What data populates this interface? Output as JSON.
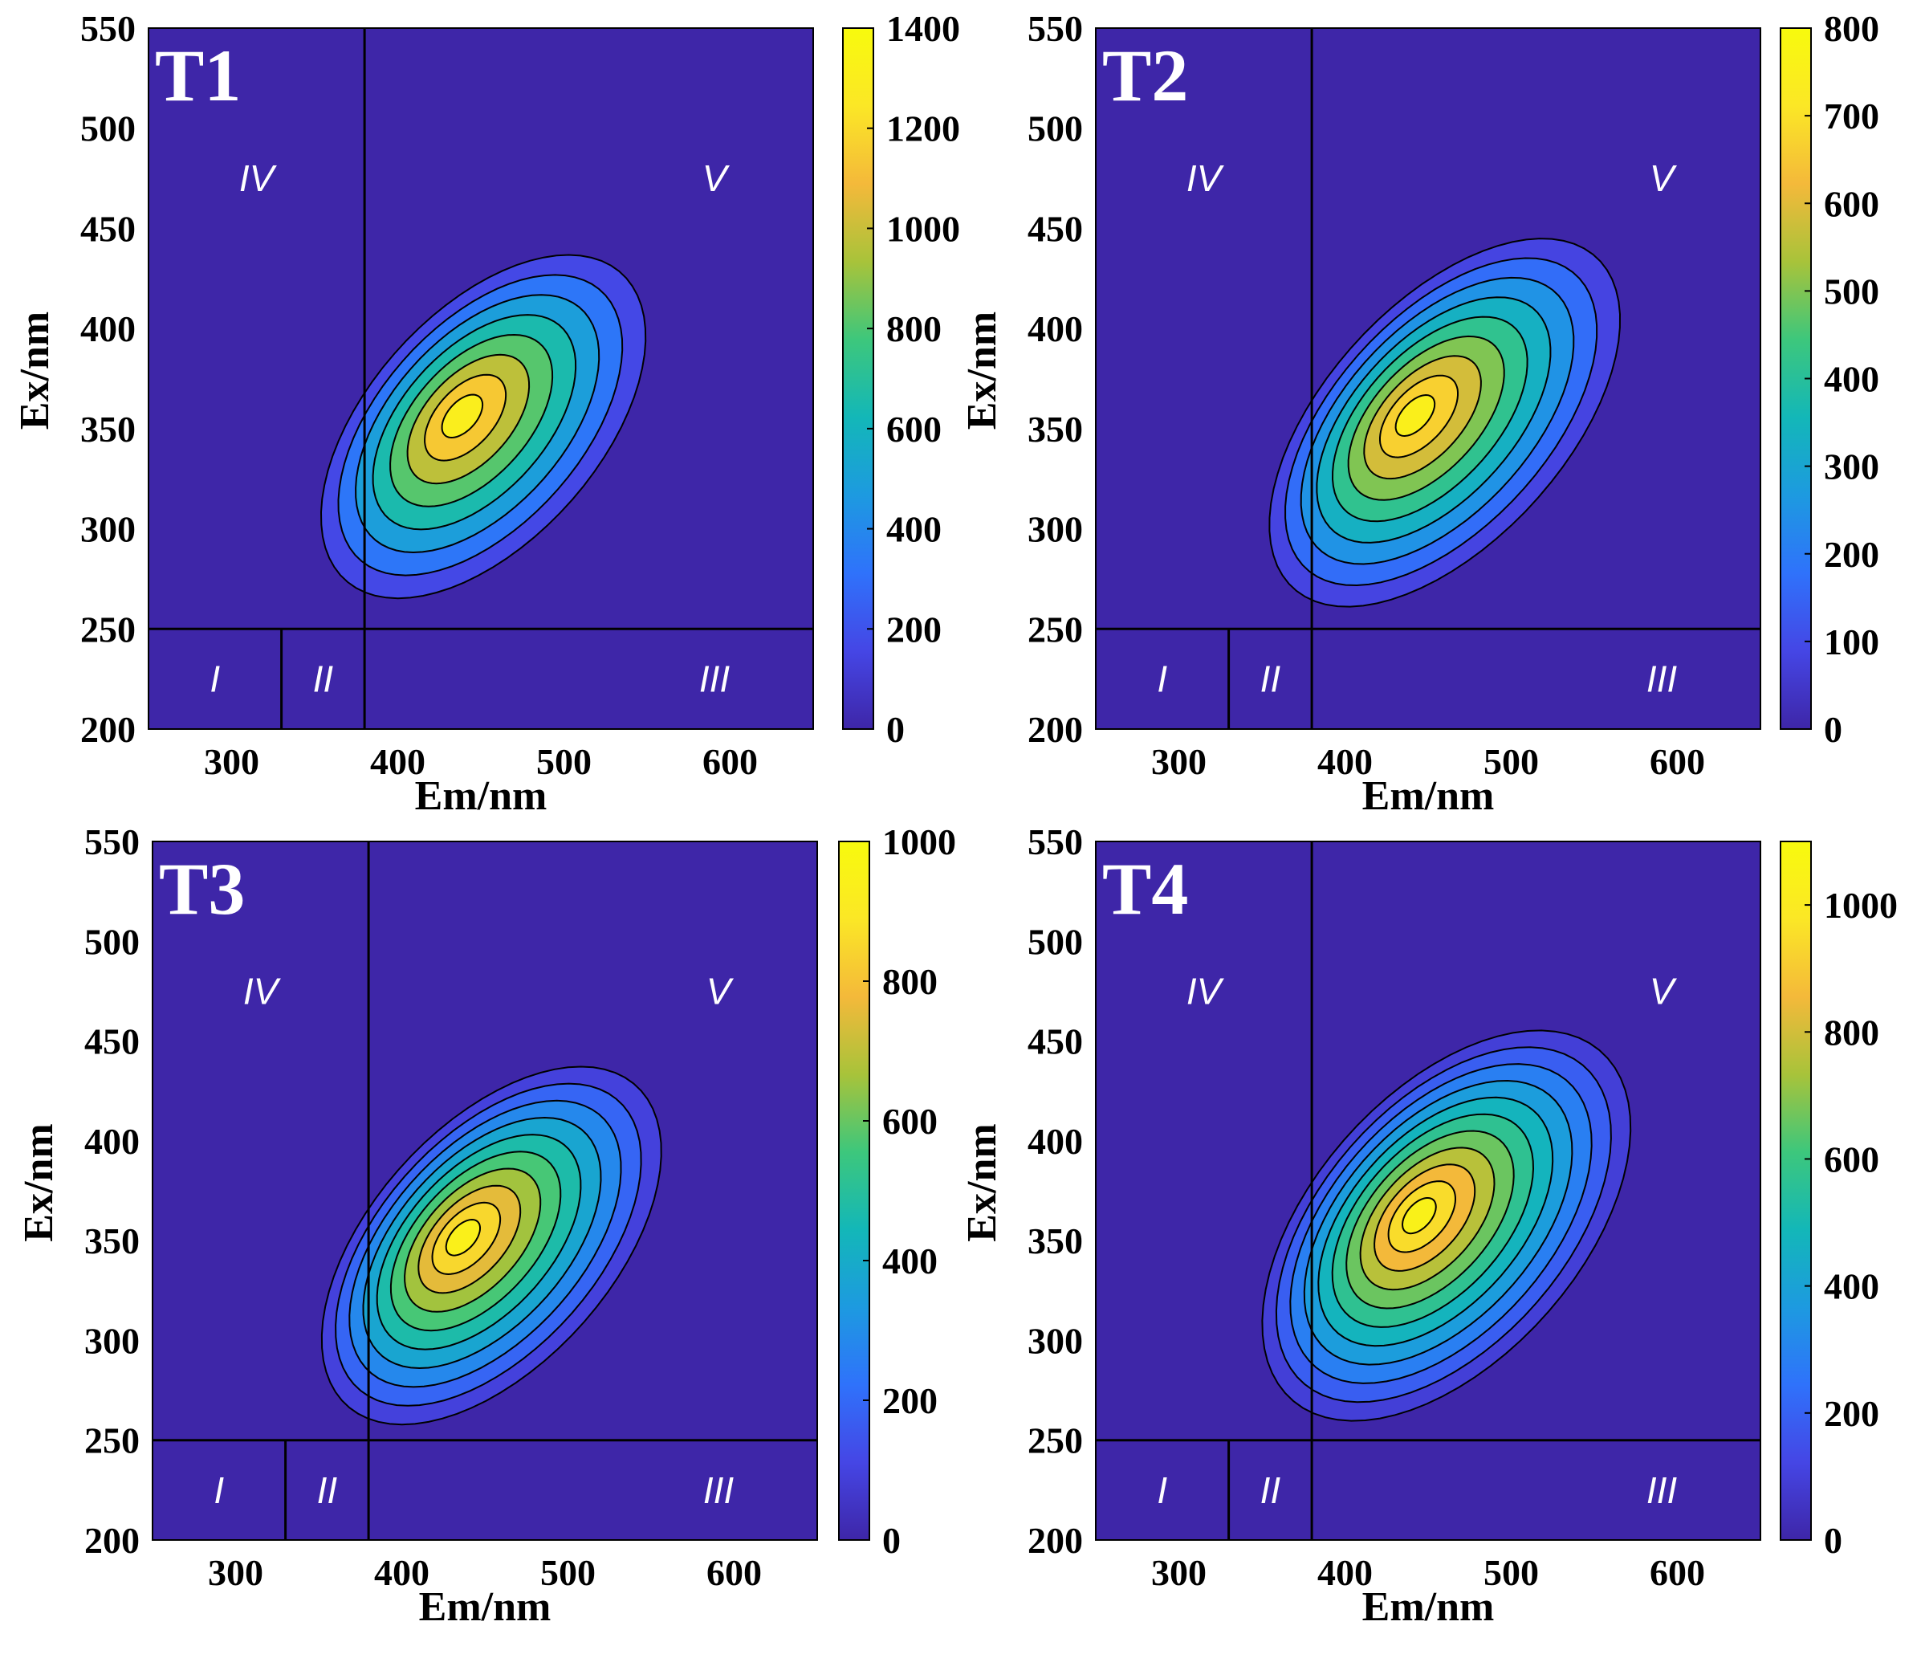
{
  "figure": {
    "panel_count": 4,
    "colormap": [
      "#3e26a8",
      "#4546e5",
      "#2f72fb",
      "#1d9ae0",
      "#13b7b8",
      "#3dc77c",
      "#a8c33a",
      "#f4b93a",
      "#fbe726",
      "#f8fa0d"
    ]
  },
  "chart_data": [
    {
      "type": "contour",
      "panel_label": "T1",
      "xlabel": "Em/nm",
      "ylabel": "Ex/nm",
      "xlim": [
        250,
        650
      ],
      "ylim": [
        200,
        550
      ],
      "xticks": [
        300,
        400,
        500,
        600
      ],
      "yticks": [
        200,
        250,
        300,
        350,
        400,
        450,
        500,
        550
      ],
      "colorbar": {
        "min": 0,
        "max": 1400,
        "ticks": [
          0,
          200,
          400,
          600,
          800,
          1000,
          1200,
          1400
        ]
      },
      "peak": {
        "em": 437,
        "ex": 357,
        "intensity": 1400
      },
      "lowest_contour_extent": {
        "em_min": 355,
        "em_max": 548,
        "ex_min": 250,
        "ex_max": 452
      },
      "contour_levels": 8,
      "region_boundaries": {
        "ex": 250,
        "em": [
          330,
          380
        ]
      },
      "regions": [
        "I",
        "II",
        "III",
        "IV",
        "V"
      ]
    },
    {
      "type": "contour",
      "panel_label": "T2",
      "xlabel": "Em/nm",
      "ylabel": "Ex/nm",
      "xlim": [
        250,
        650
      ],
      "ylim": [
        200,
        550
      ],
      "xticks": [
        300,
        400,
        500,
        600
      ],
      "yticks": [
        200,
        250,
        300,
        350,
        400,
        450,
        500,
        550
      ],
      "colorbar": {
        "min": 0,
        "max": 800,
        "ticks": [
          0,
          100,
          200,
          300,
          400,
          500,
          600,
          700,
          800
        ]
      },
      "peak": {
        "em": 440,
        "ex": 357,
        "intensity": 800
      },
      "lowest_contour_extent": {
        "em_min": 355,
        "em_max": 565,
        "ex_min": 248,
        "ex_max": 458
      },
      "contour_levels": 9,
      "region_boundaries": {
        "ex": 250,
        "em": [
          330,
          380
        ]
      },
      "regions": [
        "I",
        "II",
        "III",
        "IV",
        "V"
      ]
    },
    {
      "type": "contour",
      "panel_label": "T3",
      "xlabel": "Em/nm",
      "ylabel": "Ex/nm",
      "xlim": [
        250,
        650
      ],
      "ylim": [
        200,
        550
      ],
      "xticks": [
        300,
        400,
        500,
        600
      ],
      "yticks": [
        200,
        250,
        300,
        350,
        400,
        450,
        500,
        550
      ],
      "colorbar": {
        "min": 0,
        "max": 1000,
        "ticks": [
          0,
          200,
          400,
          600,
          800,
          1000
        ]
      },
      "peak": {
        "em": 435,
        "ex": 352,
        "intensity": 1000
      },
      "lowest_contour_extent": {
        "em_min": 353,
        "em_max": 555,
        "ex_min": 242,
        "ex_max": 453
      },
      "contour_levels": 10,
      "region_boundaries": {
        "ex": 250,
        "em": [
          330,
          380
        ]
      },
      "regions": [
        "I",
        "II",
        "III",
        "IV",
        "V"
      ]
    },
    {
      "type": "contour",
      "panel_label": "T4",
      "xlabel": "Em/nm",
      "ylabel": "Ex/nm",
      "xlim": [
        250,
        650
      ],
      "ylim": [
        200,
        550
      ],
      "xticks": [
        300,
        400,
        500,
        600
      ],
      "yticks": [
        200,
        250,
        300,
        350,
        400,
        450,
        500,
        550
      ],
      "colorbar": {
        "min": 0,
        "max": 1100,
        "ticks": [
          0,
          200,
          400,
          600,
          800,
          1000
        ]
      },
      "peak": {
        "em": 443,
        "ex": 363,
        "intensity": 1100
      },
      "lowest_contour_extent": {
        "em_min": 352,
        "em_max": 570,
        "ex_min": 240,
        "ex_max": 475
      },
      "contour_levels": 11,
      "region_boundaries": {
        "ex": 250,
        "em": [
          330,
          380
        ]
      },
      "regions": [
        "I",
        "II",
        "III",
        "IV",
        "V"
      ]
    }
  ]
}
